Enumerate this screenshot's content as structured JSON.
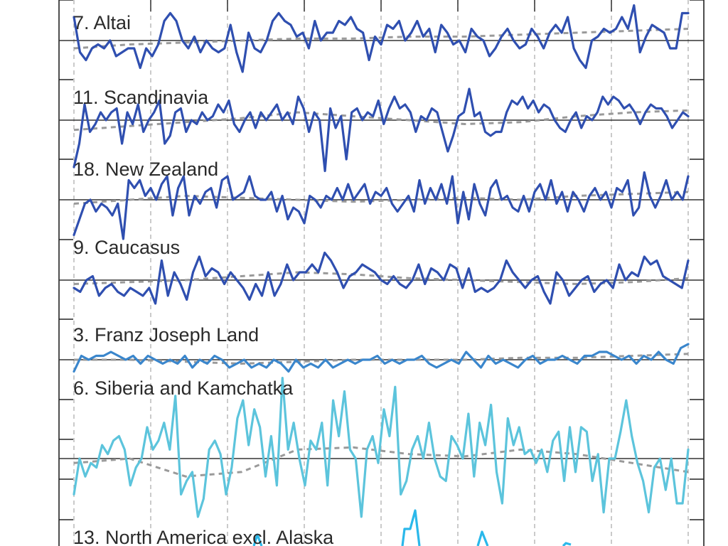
{
  "chart_data": {
    "type": "line",
    "title": "",
    "xlabel": "",
    "ylabel": "",
    "grid": true,
    "colors": {
      "dark_blue": "#2f4fb0",
      "mid_blue": "#3a86cc",
      "light_cyan": "#5cc4dc",
      "bright_cyan": "#2ab8ea",
      "trend_dashed": "#9a9a9a",
      "zero_line": "#333333",
      "grid": "#a8a8a8"
    },
    "panels": [
      {
        "label": "7. Altai",
        "color": "#2f4fb0",
        "ylim": [
          -1,
          1
        ],
        "values": [
          0.6,
          -0.3,
          -0.5,
          -0.2,
          -0.1,
          -0.2,
          0.0,
          -0.4,
          -0.3,
          -0.2,
          -0.2,
          -0.7,
          -0.2,
          -0.4,
          -0.1,
          0.5,
          0.7,
          0.5,
          0.0,
          -0.2,
          0.1,
          -0.3,
          0.0,
          -0.2,
          -0.3,
          -0.2,
          0.4,
          -0.3,
          -0.8,
          0.2,
          -0.2,
          -0.3,
          0.0,
          0.5,
          0.7,
          0.5,
          0.4,
          0.1,
          0.2,
          -0.2,
          0.5,
          0.0,
          0.2,
          0.2,
          0.5,
          0.4,
          0.6,
          0.3,
          0.2,
          -0.5,
          0.1,
          -0.1,
          0.4,
          0.3,
          0.5,
          0.0,
          0.2,
          0.5,
          0.1,
          0.3,
          -0.3,
          0.4,
          0.2,
          -0.1,
          0.0,
          -0.3,
          0.3,
          0.1,
          0.0,
          -0.4,
          -0.2,
          0.1,
          0.3,
          0.0,
          -0.2,
          -0.1,
          0.3,
          0.1,
          -0.2,
          0.2,
          0.4,
          0.2,
          0.6,
          -0.2,
          -0.5,
          -0.7,
          0.0,
          0.1,
          0.3,
          0.2,
          0.3,
          0.6,
          0.3,
          0.9,
          -0.3,
          0.1,
          0.4,
          0.3,
          0.2,
          -0.2,
          -0.2,
          0.7,
          0.7
        ],
        "trend": [
          -0.2,
          -0.1,
          -0.05,
          0.0,
          0.05,
          0.05,
          0.1,
          0.1,
          0.15,
          0.2,
          0.25,
          0.3
        ]
      },
      {
        "label": "11. Scandinavia",
        "color": "#2f4fb0",
        "ylim": [
          -1,
          1
        ],
        "values": [
          -1.2,
          -0.6,
          0.4,
          -0.3,
          -0.1,
          0.2,
          0.0,
          0.2,
          0.3,
          -0.6,
          0.2,
          -0.1,
          0.4,
          -0.3,
          0.0,
          0.2,
          0.5,
          -0.6,
          -0.4,
          0.2,
          0.3,
          -0.3,
          0.0,
          -0.1,
          0.2,
          0.0,
          0.1,
          0.4,
          0.2,
          0.5,
          -0.1,
          -0.3,
          0.0,
          0.2,
          -0.2,
          0.2,
          0.0,
          0.2,
          0.4,
          0.0,
          0.2,
          -0.1,
          0.6,
          0.3,
          -0.3,
          0.2,
          0.0,
          -1.3,
          0.3,
          -0.2,
          0.1,
          -1.0,
          0.2,
          0.3,
          0.0,
          0.2,
          0.1,
          0.5,
          -0.1,
          0.3,
          0.6,
          0.3,
          0.4,
          0.2,
          -0.3,
          0.1,
          0.0,
          0.3,
          0.2,
          -0.3,
          -0.8,
          -0.4,
          0.1,
          0.2,
          0.8,
          0.1,
          0.2,
          -0.3,
          -0.4,
          -0.3,
          -0.3,
          0.2,
          0.5,
          0.4,
          0.6,
          0.3,
          0.5,
          0.2,
          0.4,
          0.3,
          0.0,
          -0.2,
          -0.3,
          0.0,
          0.2,
          -0.2,
          0.1,
          0.0,
          0.2,
          0.6,
          0.4,
          0.6,
          0.5,
          0.3,
          0.4,
          0.2,
          -0.1,
          0.2,
          0.4,
          0.3,
          0.3,
          0.1,
          -0.2,
          0.0,
          0.2,
          0.1
        ],
        "trend": [
          -0.25,
          -0.15,
          -0.05,
          0.05,
          0.2,
          0.1,
          0.0,
          -0.1,
          -0.05,
          0.1,
          0.2,
          0.25
        ]
      },
      {
        "label": "18. New Zealand",
        "color": "#2f4fb0",
        "ylim": [
          -1,
          1
        ],
        "values": [
          -0.9,
          -0.5,
          -0.1,
          0.0,
          -0.3,
          -0.1,
          -0.2,
          -0.4,
          -0.1,
          -1.0,
          0.5,
          0.3,
          0.5,
          0.1,
          0.3,
          0.0,
          0.4,
          0.6,
          -0.4,
          0.3,
          0.6,
          -0.4,
          0.1,
          -0.1,
          0.2,
          0.3,
          -0.2,
          0.5,
          0.6,
          0.0,
          0.1,
          0.2,
          0.6,
          0.1,
          0.0,
          0.0,
          0.2,
          -0.3,
          0.1,
          -0.5,
          -0.2,
          -0.3,
          -0.6,
          0.1,
          0.0,
          -0.2,
          0.1,
          0.0,
          0.3,
          0.0,
          0.4,
          0.0,
          0.2,
          0.4,
          -0.1,
          0.2,
          0.1,
          0.3,
          -0.1,
          -0.3,
          -0.1,
          0.1,
          -0.3,
          0.5,
          -0.1,
          0.3,
          0.0,
          0.4,
          -0.1,
          0.6,
          -0.6,
          0.2,
          -0.5,
          0.4,
          -0.1,
          -0.4,
          0.3,
          0.5,
          0.0,
          0.1,
          -0.2,
          -0.3,
          0.1,
          -0.3,
          0.2,
          0.4,
          0.0,
          0.5,
          -0.1,
          0.2,
          -0.3,
          0.2,
          0.0,
          -0.3,
          0.1,
          0.3,
          0.0,
          0.2,
          -0.2,
          0.3,
          0.2,
          0.5,
          -0.4,
          -0.2,
          0.7,
          0.1,
          -0.2,
          0.1,
          0.5,
          0.0,
          0.2,
          0.0,
          0.6
        ],
        "trend": [
          -0.1,
          0.0,
          0.1,
          0.05,
          0.0,
          -0.05,
          0.0,
          0.05,
          0.0,
          0.1,
          0.15,
          0.2
        ]
      },
      {
        "label": "9. Caucasus",
        "color": "#2f4fb0",
        "ylim": [
          -1,
          1
        ],
        "values": [
          -0.2,
          -0.3,
          0.0,
          0.1,
          -0.4,
          -0.2,
          -0.1,
          -0.3,
          -0.4,
          -0.2,
          -0.3,
          -0.4,
          -0.2,
          -0.6,
          0.5,
          -0.4,
          0.2,
          -0.1,
          -0.5,
          0.2,
          0.6,
          0.1,
          0.3,
          0.2,
          -0.1,
          0.2,
          0.0,
          -0.2,
          -0.5,
          -0.1,
          -0.4,
          0.2,
          -0.4,
          -0.1,
          0.4,
          0.0,
          0.2,
          0.2,
          0.4,
          0.2,
          0.7,
          0.5,
          0.2,
          -0.2,
          0.1,
          0.2,
          0.4,
          0.3,
          0.2,
          0.0,
          -0.1,
          0.1,
          -0.1,
          -0.2,
          0.0,
          0.4,
          -0.1,
          0.3,
          0.2,
          0.0,
          0.4,
          0.3,
          -0.2,
          0.3,
          -0.3,
          -0.2,
          -0.3,
          -0.2,
          0.0,
          0.5,
          0.2,
          0.0,
          -0.2,
          0.0,
          0.1,
          -0.3,
          -0.6,
          0.2,
          0.0,
          -0.4,
          -0.2,
          0.0,
          0.1,
          -0.3,
          -0.1,
          0.0,
          -0.2,
          0.4,
          0.0,
          0.2,
          0.1,
          0.6,
          0.4,
          0.5,
          0.1,
          0.0,
          -0.1,
          -0.2,
          0.5
        ],
        "trend": [
          -0.1,
          -0.05,
          0.0,
          0.1,
          0.2,
          0.15,
          0.05,
          0.0,
          -0.05,
          -0.1,
          -0.05,
          0.05
        ]
      },
      {
        "label": "3. Franz Joseph Land",
        "color": "#3a86cc",
        "ylim": [
          -1,
          1
        ],
        "values": [
          -0.3,
          0.1,
          0.0,
          0.1,
          0.1,
          0.2,
          0.1,
          0.0,
          0.1,
          -0.1,
          0.1,
          0.0,
          -0.1,
          0.0,
          -0.1,
          0.1,
          -0.2,
          0.0,
          -0.1,
          0.1,
          0.0,
          -0.2,
          -0.1,
          0.0,
          -0.2,
          -0.1,
          -0.2,
          0.0,
          -0.1,
          -0.3,
          0.0,
          -0.2,
          -0.1,
          -0.2,
          0.0,
          -0.2,
          -0.1,
          0.0,
          -0.1,
          0.0,
          0.0,
          0.1,
          -0.1,
          0.0,
          -0.1,
          0.0,
          0.0,
          0.1,
          -0.1,
          -0.2,
          -0.1,
          0.0,
          -0.1,
          0.2,
          0.0,
          -0.2,
          0.1,
          -0.1,
          0.0,
          -0.1,
          -0.2,
          0.0,
          0.1,
          -0.1,
          0.0,
          0.0,
          0.1,
          0.0,
          -0.1,
          0.1,
          0.1,
          0.2,
          0.2,
          0.1,
          0.0,
          0.1,
          -0.1,
          0.1,
          0.0,
          0.2,
          0.0,
          -0.1,
          0.3,
          0.4
        ],
        "trend": [
          0.0,
          0.0,
          -0.05,
          -0.1,
          -0.05,
          0.0,
          0.0,
          0.0,
          0.05,
          0.05,
          0.1,
          0.15
        ]
      },
      {
        "label": "6. Siberia and Kamchatka",
        "color": "#5cc4dc",
        "ylim": [
          -1.5,
          1.5
        ],
        "values": [
          -0.8,
          0.0,
          -0.4,
          -0.1,
          -0.2,
          0.3,
          0.1,
          0.4,
          0.5,
          0.2,
          -0.6,
          -0.2,
          0.0,
          0.7,
          0.2,
          0.4,
          0.8,
          0.2,
          1.4,
          -0.8,
          -0.5,
          -0.3,
          -1.3,
          -0.9,
          0.2,
          0.4,
          0.1,
          -0.8,
          -0.2,
          0.9,
          1.3,
          0.3,
          1.1,
          0.7,
          -0.4,
          0.5,
          -0.6,
          1.8,
          0.2,
          0.8,
          0.0,
          -0.6,
          0.4,
          0.2,
          0.8,
          -0.6,
          1.3,
          0.5,
          1.5,
          0.2,
          0.0,
          -1.3,
          0.2,
          0.5,
          -0.1,
          1.1,
          0.5,
          1.6,
          -0.8,
          -0.5,
          0.2,
          0.5,
          0.0,
          0.8,
          0.0,
          -0.4,
          -0.5,
          0.5,
          0.3,
          0.0,
          1.0,
          -0.4,
          0.8,
          0.3,
          1.2,
          -0.3,
          -1.0,
          0.9,
          0.3,
          0.7,
          0.1,
          0.2,
          -0.1,
          0.2,
          -0.3,
          0.4,
          0.6,
          -0.5,
          0.7,
          -0.3,
          0.7,
          0.6,
          -0.5,
          0.1,
          -1.2,
          0.0,
          0.0,
          0.6,
          1.3,
          0.5,
          -0.1,
          -0.5,
          -1.2,
          -0.2,
          0.0,
          -0.7,
          0.0,
          -1.0,
          -1.0,
          0.2
        ],
        "trend": [
          -0.1,
          0.0,
          -0.4,
          -0.3,
          0.2,
          0.25,
          0.1,
          0.05,
          0.2,
          0.1,
          -0.1,
          -0.3
        ]
      },
      {
        "label": "13. North America excl. Alaska",
        "color": "#2ab8ea",
        "values": []
      }
    ]
  }
}
